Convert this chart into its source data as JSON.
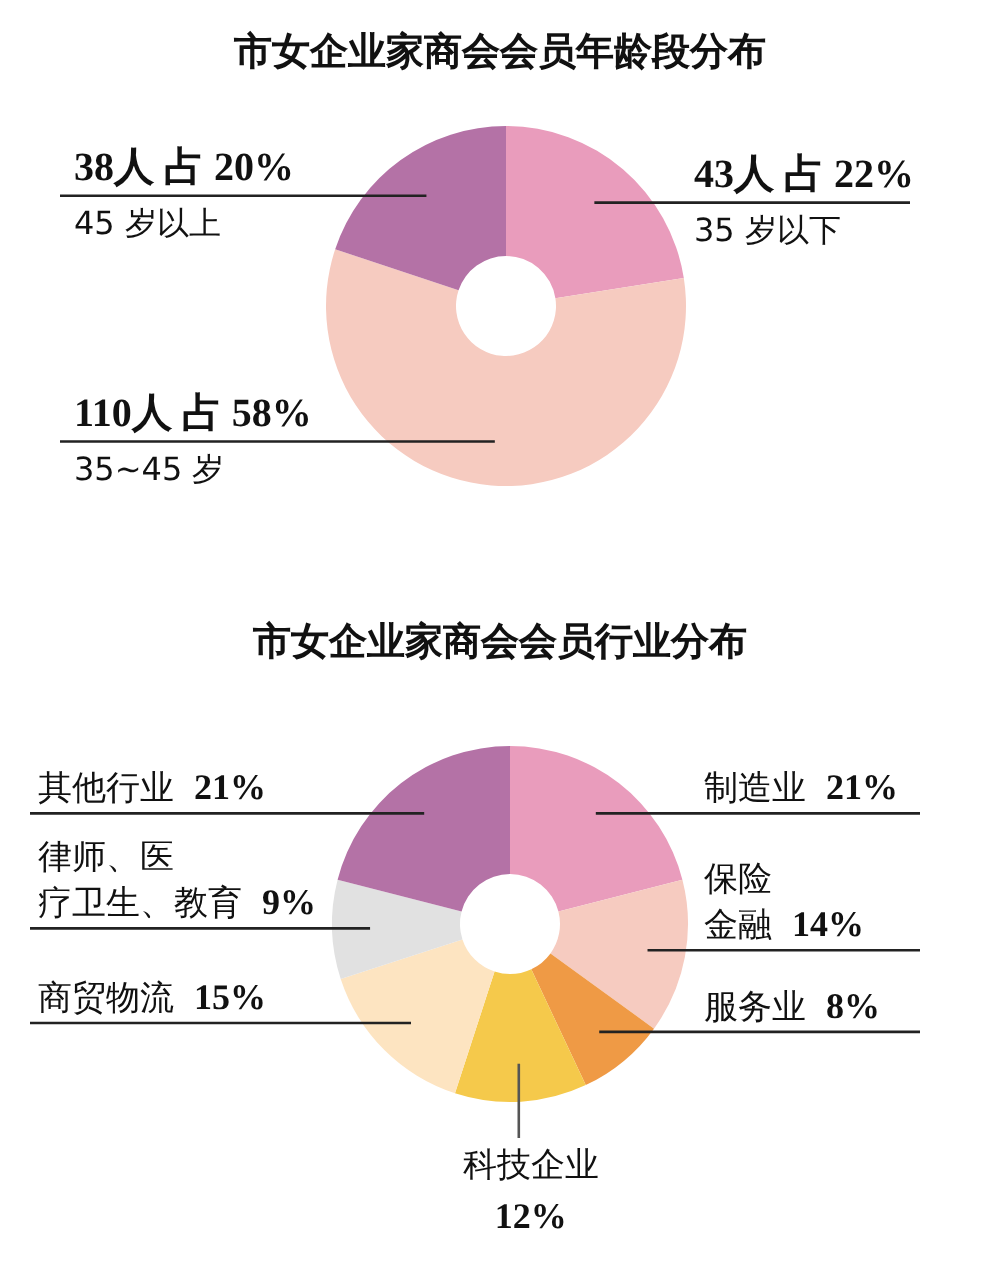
{
  "chart_data": [
    {
      "type": "donut",
      "title": "市女企业家商会会员年龄段分布",
      "categories": [
        "35 岁以下",
        "35~45 岁",
        "45 岁以上"
      ],
      "values": [
        43,
        110,
        38
      ],
      "colors": [
        "#e99cbc",
        "#f6cbc0",
        "#b472a6"
      ],
      "value_labels": [
        "43人 占 22%",
        "110人 占 58%",
        "38人 占 20%"
      ]
    },
    {
      "type": "donut",
      "title": "市女企业家商会会员行业分布",
      "categories": [
        "制造业",
        "保险金融",
        "服务业",
        "科技企业",
        "商贸物流",
        "律师、医疗卫生、教育",
        "其他行业"
      ],
      "values": [
        21,
        14,
        8,
        12,
        15,
        9,
        21
      ],
      "colors": [
        "#e99cbc",
        "#f6cbc0",
        "#ef9a45",
        "#f5c94b",
        "#fde4c1",
        "#e1e1e1",
        "#b472a6"
      ],
      "value_labels": [
        "21%",
        "14%",
        "8%",
        "12%",
        "15%",
        "9%",
        "21%"
      ]
    }
  ]
}
